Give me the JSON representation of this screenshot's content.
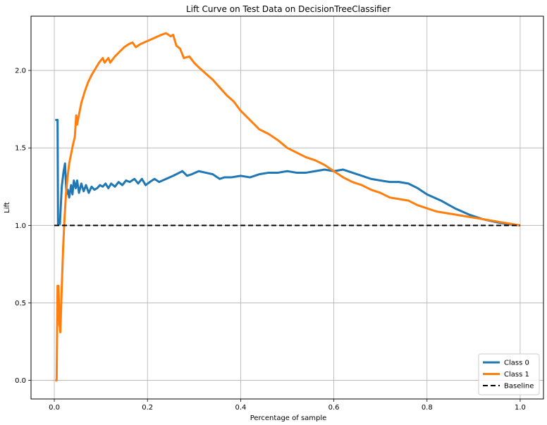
{
  "chart_data": {
    "type": "line",
    "title": "Lift Curve on Test Data on DecisionTreeClassifier",
    "xlabel": "Percentage of sample",
    "ylabel": "Lift",
    "xlim": [
      -0.05,
      1.05
    ],
    "ylim": [
      -0.12,
      2.35
    ],
    "x_ticks": [
      0.0,
      0.2,
      0.4,
      0.6,
      0.8,
      1.0
    ],
    "x_tick_labels": [
      "0.0",
      "0.2",
      "0.4",
      "0.6",
      "0.8",
      "1.0"
    ],
    "y_ticks": [
      0.0,
      0.5,
      1.0,
      1.5,
      2.0
    ],
    "y_tick_labels": [
      "0.0",
      "0.5",
      "1.0",
      "1.5",
      "2.0"
    ],
    "grid": true,
    "legend_position": "lower-right",
    "series": [
      {
        "name": "Class 0",
        "color": "#1f77b4",
        "style": "solid",
        "points": [
          [
            0.002,
            1.68
          ],
          [
            0.007,
            1.68
          ],
          [
            0.008,
            1.01
          ],
          [
            0.012,
            1.01
          ],
          [
            0.016,
            1.25
          ],
          [
            0.02,
            1.35
          ],
          [
            0.023,
            1.4
          ],
          [
            0.026,
            1.2
          ],
          [
            0.029,
            1.23
          ],
          [
            0.032,
            1.18
          ],
          [
            0.036,
            1.26
          ],
          [
            0.039,
            1.2
          ],
          [
            0.042,
            1.29
          ],
          [
            0.046,
            1.24
          ],
          [
            0.049,
            1.29
          ],
          [
            0.053,
            1.21
          ],
          [
            0.058,
            1.27
          ],
          [
            0.063,
            1.22
          ],
          [
            0.068,
            1.26
          ],
          [
            0.074,
            1.21
          ],
          [
            0.08,
            1.25
          ],
          [
            0.086,
            1.23
          ],
          [
            0.092,
            1.24
          ],
          [
            0.098,
            1.26
          ],
          [
            0.104,
            1.25
          ],
          [
            0.11,
            1.27
          ],
          [
            0.116,
            1.24
          ],
          [
            0.122,
            1.27
          ],
          [
            0.13,
            1.25
          ],
          [
            0.138,
            1.28
          ],
          [
            0.146,
            1.26
          ],
          [
            0.154,
            1.29
          ],
          [
            0.162,
            1.28
          ],
          [
            0.172,
            1.3
          ],
          [
            0.18,
            1.27
          ],
          [
            0.188,
            1.3
          ],
          [
            0.196,
            1.26
          ],
          [
            0.205,
            1.28
          ],
          [
            0.215,
            1.3
          ],
          [
            0.225,
            1.28
          ],
          [
            0.24,
            1.3
          ],
          [
            0.255,
            1.32
          ],
          [
            0.275,
            1.35
          ],
          [
            0.285,
            1.32
          ],
          [
            0.295,
            1.33
          ],
          [
            0.31,
            1.35
          ],
          [
            0.325,
            1.34
          ],
          [
            0.34,
            1.33
          ],
          [
            0.355,
            1.3
          ],
          [
            0.365,
            1.31
          ],
          [
            0.38,
            1.31
          ],
          [
            0.4,
            1.32
          ],
          [
            0.42,
            1.31
          ],
          [
            0.44,
            1.33
          ],
          [
            0.46,
            1.34
          ],
          [
            0.48,
            1.34
          ],
          [
            0.5,
            1.35
          ],
          [
            0.52,
            1.34
          ],
          [
            0.54,
            1.34
          ],
          [
            0.56,
            1.35
          ],
          [
            0.58,
            1.36
          ],
          [
            0.6,
            1.35
          ],
          [
            0.62,
            1.36
          ],
          [
            0.64,
            1.34
          ],
          [
            0.66,
            1.32
          ],
          [
            0.68,
            1.3
          ],
          [
            0.7,
            1.29
          ],
          [
            0.72,
            1.28
          ],
          [
            0.74,
            1.28
          ],
          [
            0.76,
            1.27
          ],
          [
            0.78,
            1.24
          ],
          [
            0.8,
            1.2
          ],
          [
            0.83,
            1.16
          ],
          [
            0.86,
            1.11
          ],
          [
            0.89,
            1.07
          ],
          [
            0.92,
            1.04
          ],
          [
            0.95,
            1.02
          ],
          [
            0.97,
            1.01
          ],
          [
            1.0,
            1.0
          ]
        ]
      },
      {
        "name": "Class 1",
        "color": "#ff7f0e",
        "style": "solid",
        "points": [
          [
            0.002,
            0.0
          ],
          [
            0.005,
            0.0
          ],
          [
            0.007,
            0.61
          ],
          [
            0.009,
            0.61
          ],
          [
            0.011,
            0.36
          ],
          [
            0.013,
            0.31
          ],
          [
            0.016,
            0.6
          ],
          [
            0.019,
            0.86
          ],
          [
            0.022,
            1.05
          ],
          [
            0.025,
            1.2
          ],
          [
            0.028,
            1.3
          ],
          [
            0.032,
            1.4
          ],
          [
            0.036,
            1.46
          ],
          [
            0.04,
            1.52
          ],
          [
            0.044,
            1.57
          ],
          [
            0.047,
            1.71
          ],
          [
            0.049,
            1.65
          ],
          [
            0.052,
            1.7
          ],
          [
            0.058,
            1.79
          ],
          [
            0.065,
            1.86
          ],
          [
            0.072,
            1.92
          ],
          [
            0.08,
            1.97
          ],
          [
            0.088,
            2.01
          ],
          [
            0.096,
            2.05
          ],
          [
            0.104,
            2.08
          ],
          [
            0.108,
            2.05
          ],
          [
            0.116,
            2.08
          ],
          [
            0.12,
            2.05
          ],
          [
            0.13,
            2.09
          ],
          [
            0.14,
            2.12
          ],
          [
            0.15,
            2.15
          ],
          [
            0.16,
            2.17
          ],
          [
            0.168,
            2.18
          ],
          [
            0.175,
            2.15
          ],
          [
            0.185,
            2.17
          ],
          [
            0.2,
            2.19
          ],
          [
            0.215,
            2.21
          ],
          [
            0.23,
            2.23
          ],
          [
            0.24,
            2.24
          ],
          [
            0.25,
            2.22
          ],
          [
            0.255,
            2.23
          ],
          [
            0.262,
            2.16
          ],
          [
            0.27,
            2.14
          ],
          [
            0.278,
            2.08
          ],
          [
            0.29,
            2.09
          ],
          [
            0.3,
            2.05
          ],
          [
            0.31,
            2.02
          ],
          [
            0.325,
            1.98
          ],
          [
            0.34,
            1.94
          ],
          [
            0.355,
            1.89
          ],
          [
            0.37,
            1.84
          ],
          [
            0.385,
            1.8
          ],
          [
            0.4,
            1.74
          ],
          [
            0.42,
            1.68
          ],
          [
            0.44,
            1.62
          ],
          [
            0.46,
            1.59
          ],
          [
            0.48,
            1.55
          ],
          [
            0.5,
            1.5
          ],
          [
            0.52,
            1.47
          ],
          [
            0.54,
            1.44
          ],
          [
            0.56,
            1.42
          ],
          [
            0.58,
            1.39
          ],
          [
            0.6,
            1.35
          ],
          [
            0.62,
            1.31
          ],
          [
            0.64,
            1.28
          ],
          [
            0.66,
            1.26
          ],
          [
            0.68,
            1.23
          ],
          [
            0.7,
            1.21
          ],
          [
            0.72,
            1.18
          ],
          [
            0.74,
            1.17
          ],
          [
            0.76,
            1.16
          ],
          [
            0.78,
            1.13
          ],
          [
            0.8,
            1.11
          ],
          [
            0.82,
            1.09
          ],
          [
            0.84,
            1.08
          ],
          [
            0.86,
            1.07
          ],
          [
            0.88,
            1.06
          ],
          [
            0.9,
            1.05
          ],
          [
            0.92,
            1.04
          ],
          [
            0.94,
            1.03
          ],
          [
            0.96,
            1.02
          ],
          [
            0.98,
            1.01
          ],
          [
            1.0,
            1.0
          ]
        ]
      },
      {
        "name": "Baseline",
        "color": "#000000",
        "style": "dashed",
        "points": [
          [
            0.0,
            1.0
          ],
          [
            1.0,
            1.0
          ]
        ]
      }
    ]
  }
}
